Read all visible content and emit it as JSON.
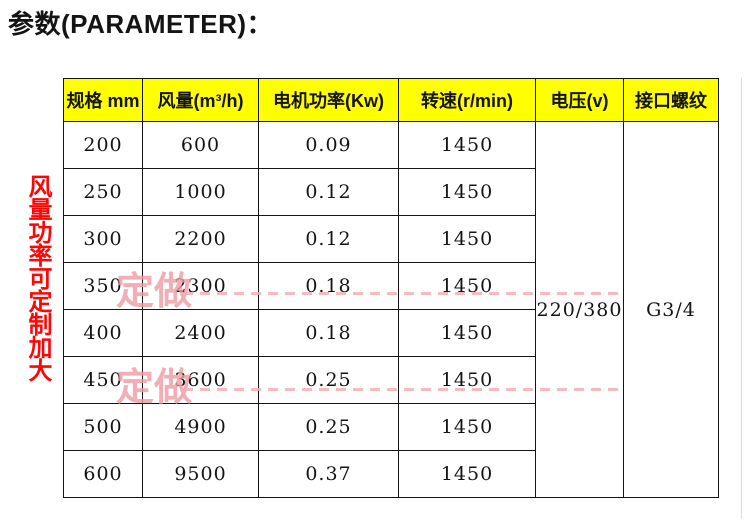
{
  "title": "参数(PARAMETER)：",
  "side_note": {
    "text": "风量功率可定制加大"
  },
  "watermark": {
    "text": "定做"
  },
  "colors": {
    "header-bg": "#ffff00",
    "table-border": "#141414",
    "text": "#141414",
    "side-note-red": "#fe0606",
    "watermark-pink": "#ee9aa3",
    "watermark-dash": "#f3aeb5",
    "edge-line": "#dadada"
  },
  "table": {
    "headers": [
      "规格 mm",
      "风量(m³/h)",
      "电机功率(Kw)",
      "转速(r/min)",
      "电压(v)",
      "接口螺纹"
    ],
    "rows": [
      {
        "spec": "200",
        "airflow": "600",
        "power": "0.09",
        "speed": "1450"
      },
      {
        "spec": "250",
        "airflow": "1000",
        "power": "0.12",
        "speed": "1450"
      },
      {
        "spec": "300",
        "airflow": "2200",
        "power": "0.12",
        "speed": "1450"
      },
      {
        "spec": "350",
        "airflow": "2300",
        "power": "0.18",
        "speed": "1450"
      },
      {
        "spec": "400",
        "airflow": "2400",
        "power": "0.18",
        "speed": "1450"
      },
      {
        "spec": "450",
        "airflow": "3600",
        "power": "0.25",
        "speed": "1450"
      },
      {
        "spec": "500",
        "airflow": "4900",
        "power": "0.25",
        "speed": "1450"
      },
      {
        "spec": "600",
        "airflow": "9500",
        "power": "0.37",
        "speed": "1450"
      }
    ],
    "voltage": "220/380",
    "thread": "G3/4"
  }
}
